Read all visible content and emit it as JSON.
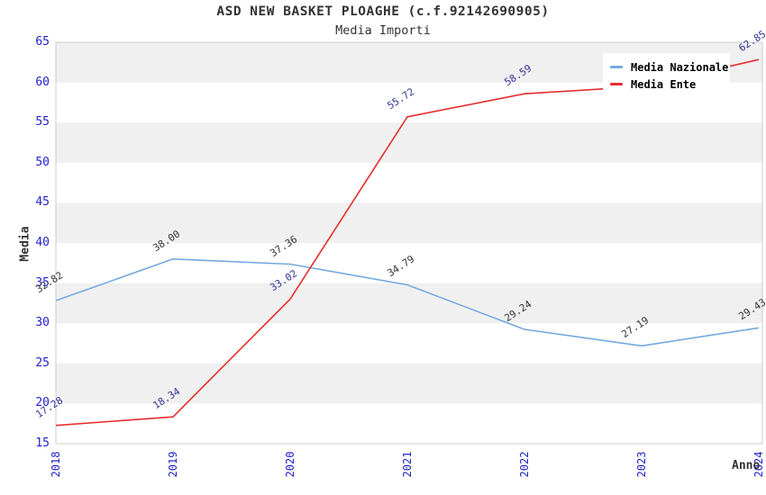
{
  "chart_data": {
    "type": "line",
    "title": "ASD NEW BASKET PLOAGHE (c.f.92142690905)",
    "subtitle": "Media Importi",
    "xlabel": "Anno",
    "ylabel": "Media",
    "x": [
      "2018",
      "2019",
      "2020",
      "2021",
      "2022",
      "2023",
      "2024"
    ],
    "ylim": [
      15,
      65
    ],
    "ytick_step": 5,
    "grid_bands": true,
    "legend_position": "top-right",
    "series": [
      {
        "name": "Media Nazionale",
        "color": "#74a9e0",
        "label_color": "#333333",
        "values": [
          32.82,
          38.0,
          37.36,
          34.79,
          29.24,
          27.19,
          29.43
        ],
        "labels": [
          "32.82",
          "38.00",
          "37.36",
          "34.79",
          "29.24",
          "27.19",
          "29.43"
        ]
      },
      {
        "name": "Media Ente",
        "color": "#e62e2e",
        "label_color": "#333399",
        "values": [
          17.28,
          18.34,
          33.02,
          55.72,
          58.59,
          59.5,
          62.85
        ],
        "labels": [
          "17.28",
          "18.34",
          "33.02",
          "55.72",
          "58.59",
          null,
          "62.85"
        ]
      }
    ],
    "colors": {
      "tick_label": "#2222cc",
      "band_fill": "#f0f0f0",
      "plot_border": "#cccccc",
      "title_text": "#333333"
    }
  }
}
